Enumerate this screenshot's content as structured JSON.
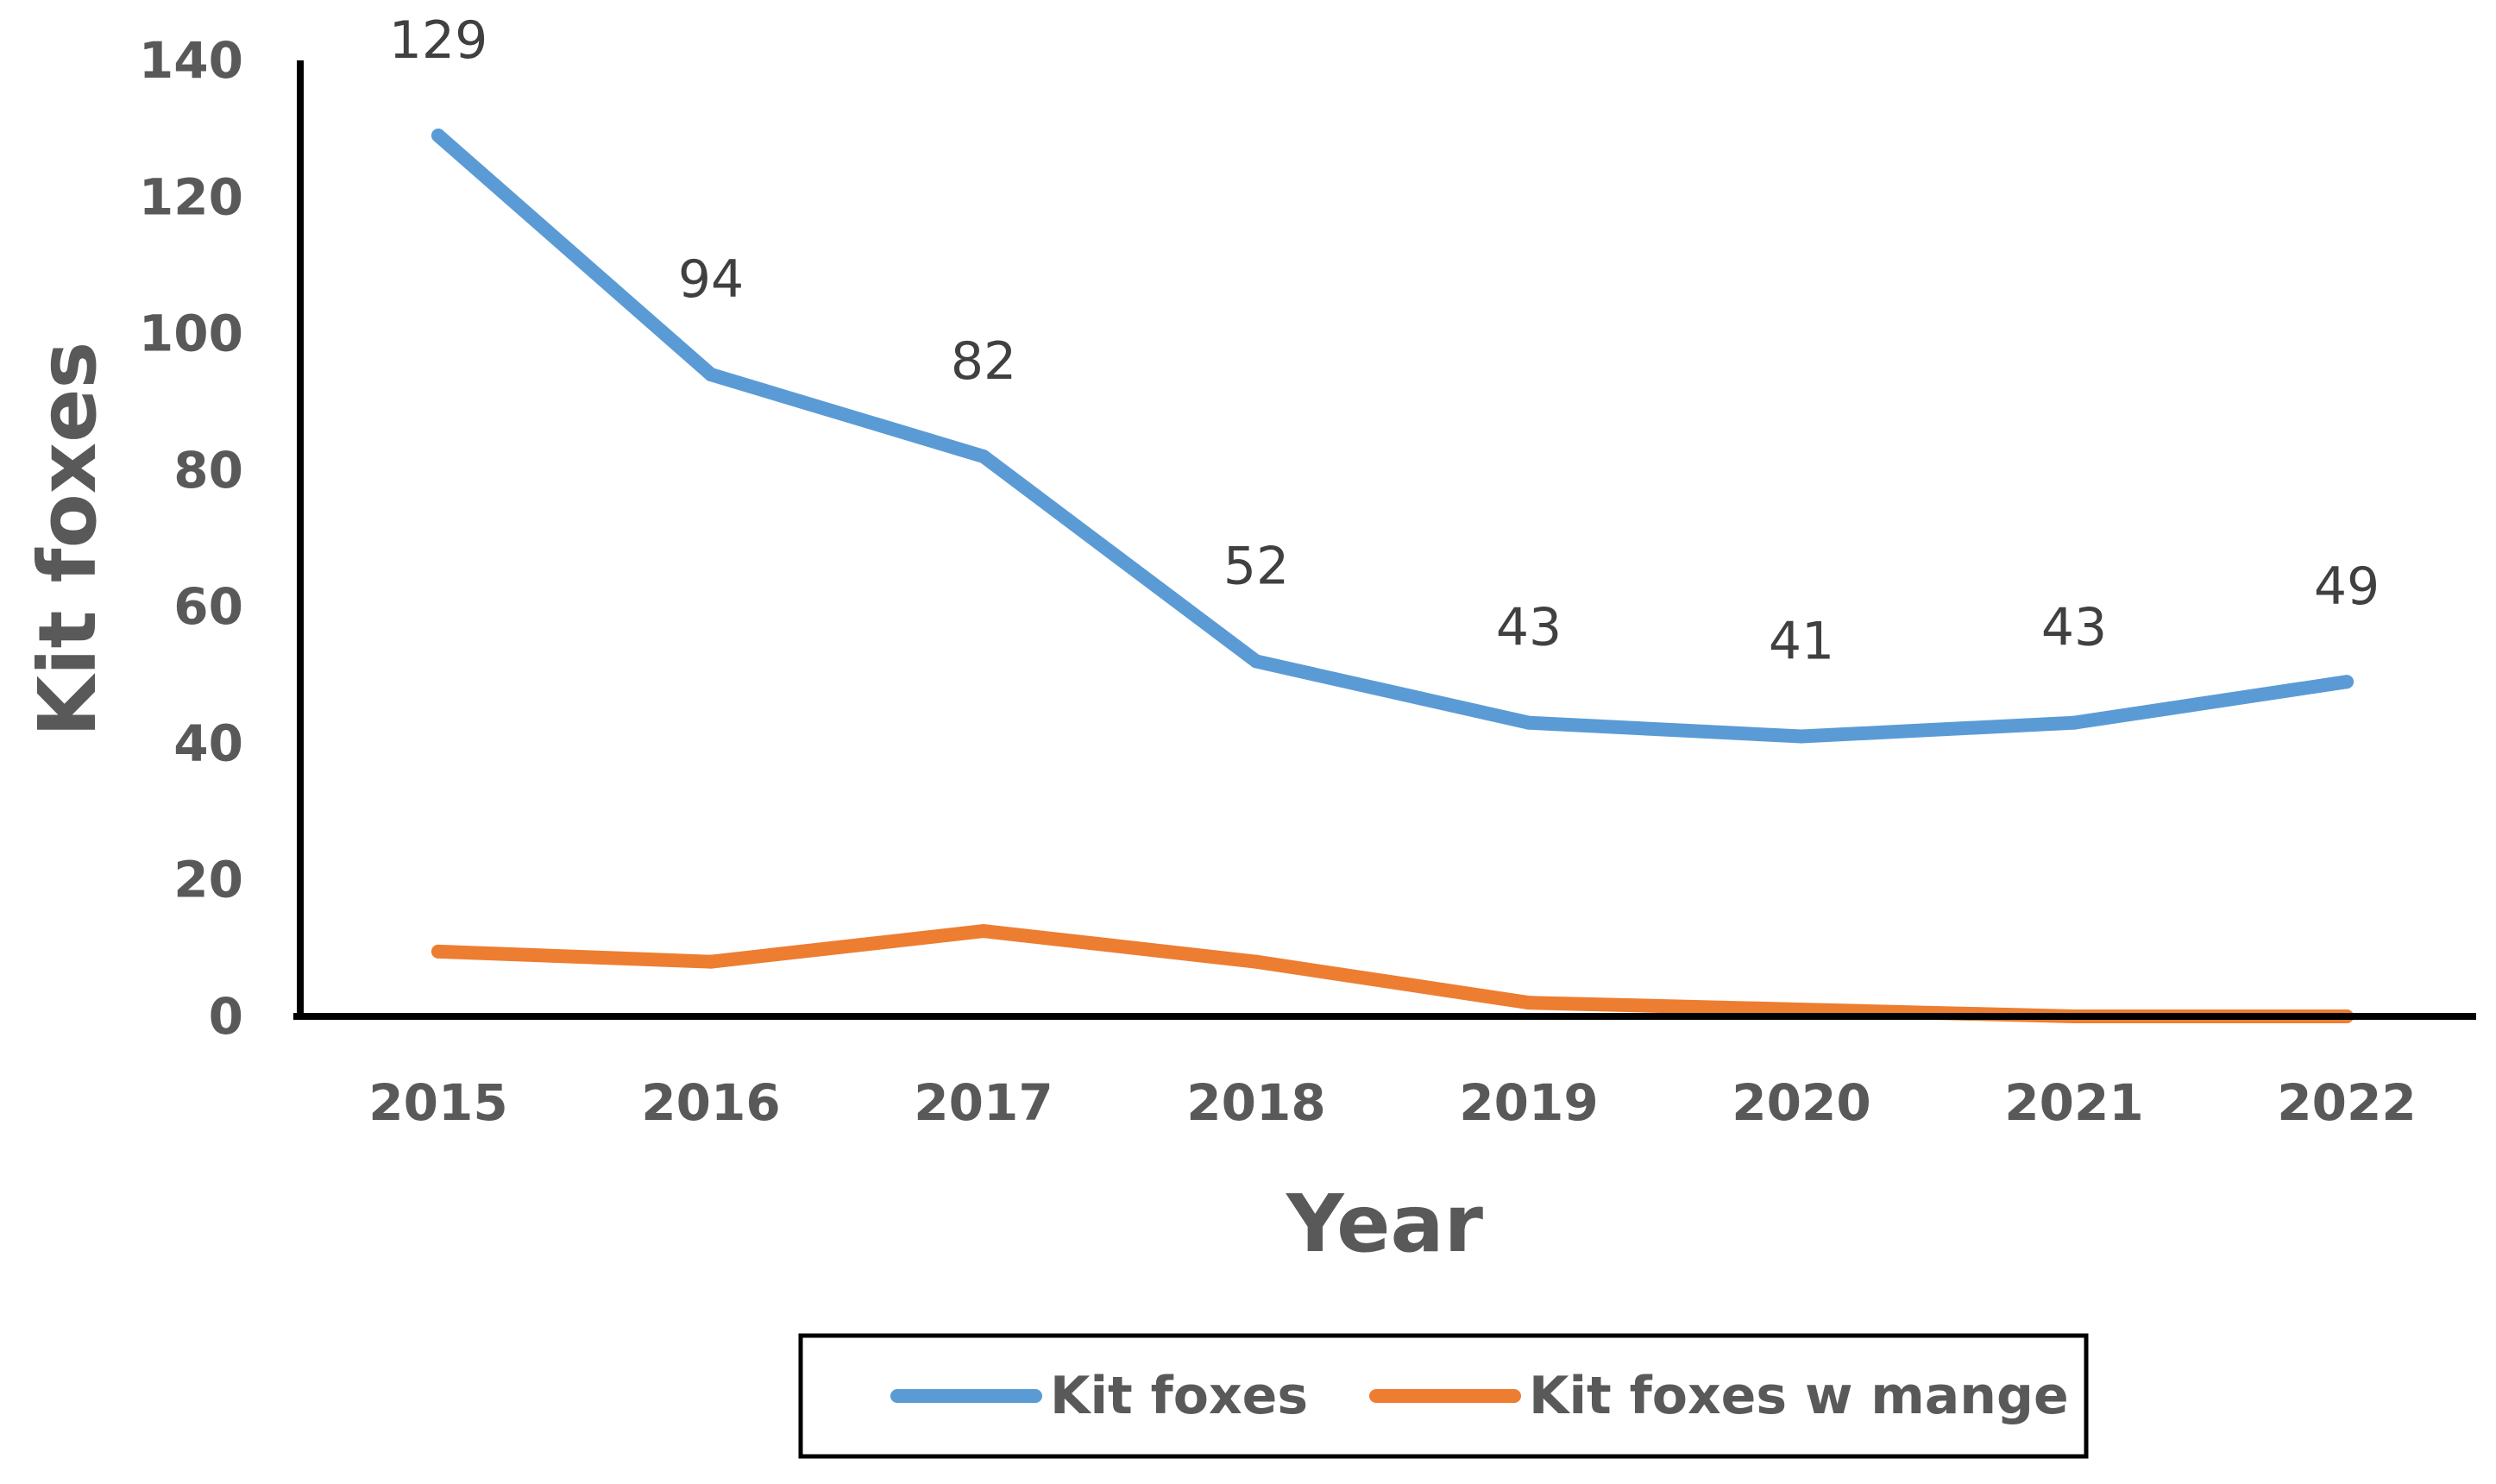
{
  "chart_data": {
    "type": "line",
    "title": "",
    "xlabel": "Year",
    "ylabel": "Kit foxes",
    "categories": [
      "2015",
      "2016",
      "2017",
      "2018",
      "2019",
      "2020",
      "2021",
      "2022"
    ],
    "ylim": [
      0,
      140
    ],
    "yticks": [
      0,
      20,
      40,
      60,
      80,
      100,
      120,
      140
    ],
    "grid": false,
    "legend_position": "bottom",
    "series": [
      {
        "name": "Kit foxes",
        "color": "#5B9BD5",
        "values": [
          129,
          94,
          82,
          52,
          43,
          41,
          43,
          49
        ],
        "data_labels": [
          "129",
          "94",
          "82",
          "52",
          "43",
          "41",
          "43",
          "49"
        ]
      },
      {
        "name": "Kit foxes w mange",
        "color": "#ED7D31",
        "values": [
          9.5,
          8,
          12.5,
          8,
          2,
          1,
          0,
          0
        ]
      }
    ]
  }
}
